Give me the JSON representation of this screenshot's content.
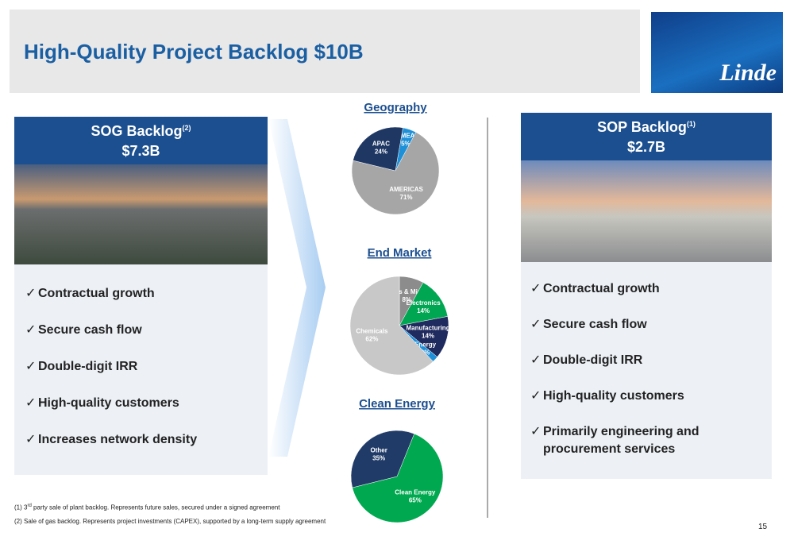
{
  "header": {
    "title": "High-Quality Project Backlog $10B",
    "logo": "Linde"
  },
  "sog": {
    "title": "SOG Backlog",
    "note": "(2)",
    "amount": "$7.3B",
    "bullets": [
      "Contractual growth",
      "Secure cash flow",
      "Double-digit IRR",
      "High-quality customers",
      "Increases network density"
    ]
  },
  "sop": {
    "title": "SOP Backlog",
    "note": "(1)",
    "amount": "$2.7B",
    "bullets": [
      "Contractual growth",
      "Secure cash flow",
      "Double-digit IRR",
      "High-quality customers",
      "Primarily engineering and procurement services"
    ]
  },
  "chart_data": [
    {
      "type": "pie",
      "title": "Geography",
      "categories": [
        "EMEA",
        "AMERICAS",
        "APAC"
      ],
      "values": [
        5,
        71,
        24
      ],
      "value_labels": [
        "5%",
        "71%",
        "24%"
      ],
      "colors": [
        "#1e90d8",
        "#a6a6a6",
        "#1f3763"
      ]
    },
    {
      "type": "pie",
      "title": "End Market",
      "categories": [
        "Metals & Mining",
        "Electronics",
        "Manufacturing",
        "Energy",
        "Chemicals"
      ],
      "values": [
        8,
        14,
        14,
        2,
        62
      ],
      "value_labels": [
        "8%",
        "14%",
        "14%",
        "2%",
        "62%"
      ],
      "colors": [
        "#8c8c8c",
        "#00a651",
        "#1f2a5e",
        "#1e90d8",
        "#c8c8c8"
      ]
    },
    {
      "type": "pie",
      "title": "Clean Energy",
      "categories": [
        "Clean Energy",
        "Other"
      ],
      "values": [
        65,
        35
      ],
      "value_labels": [
        "65%",
        "35%"
      ],
      "colors": [
        "#00a84f",
        "#213b68"
      ]
    }
  ],
  "footnotes": [
    {
      "number": "(1)",
      "ordinal": "3",
      "suffix": "rd",
      "text": "party sale of plant backlog. Represents future sales, secured under a signed agreement"
    },
    {
      "number": "(2)",
      "text": "Sale of gas backlog. Represents project investments (CAPEX), supported by a long-term supply agreement"
    }
  ],
  "page_number": "15"
}
